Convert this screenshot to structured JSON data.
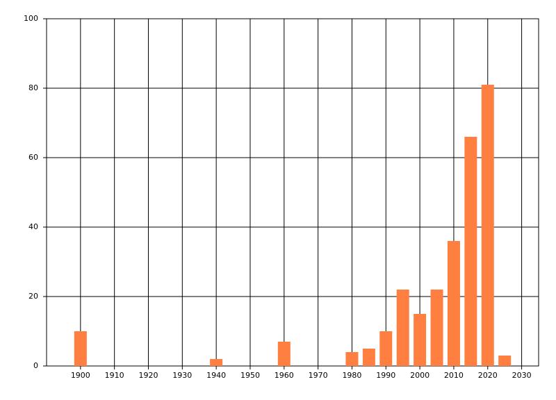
{
  "chart_data": {
    "type": "bar",
    "x": [
      1900,
      1940,
      1960,
      1980,
      1985,
      1990,
      1995,
      2000,
      2005,
      2010,
      2015,
      2020,
      2025
    ],
    "values": [
      10,
      2,
      7,
      4,
      5,
      10,
      22,
      15,
      22,
      36,
      66,
      81,
      3
    ],
    "color": "#ff7f40",
    "xlim": [
      1890,
      2035
    ],
    "xticks": [
      1900,
      1910,
      1920,
      1930,
      1940,
      1950,
      1960,
      1970,
      1980,
      1990,
      2000,
      2010,
      2020,
      2030
    ],
    "ylim": [
      0,
      100
    ],
    "yticks": [
      0,
      20,
      40,
      60,
      80,
      100
    ],
    "grid": true
  }
}
